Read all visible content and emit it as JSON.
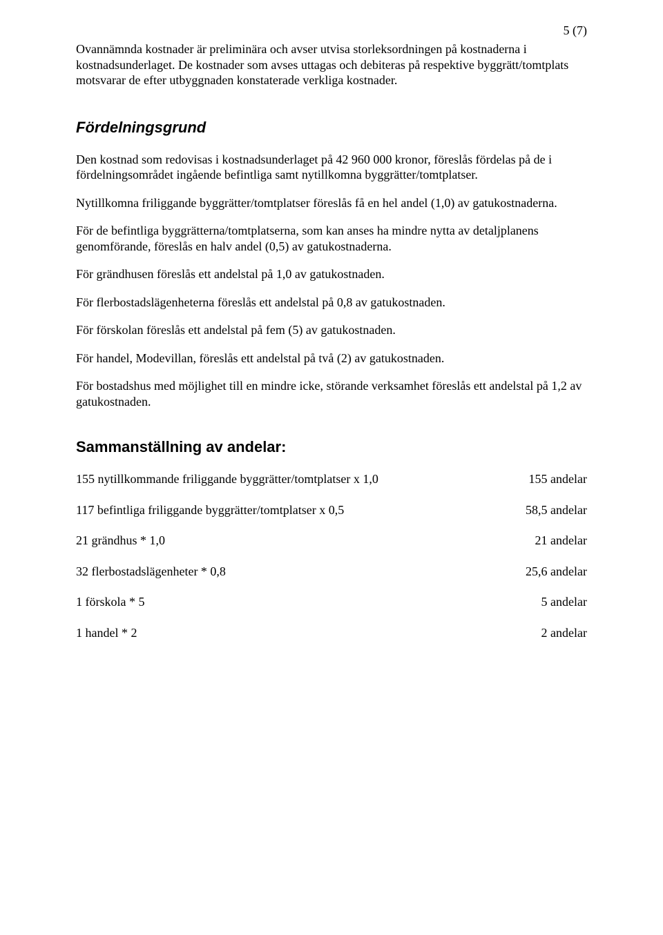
{
  "page_number": "5 (7)",
  "intro": {
    "p1": "Ovannämnda kostnader är preliminära och avser utvisa storleksordningen på kostnaderna i kostnadsunderlaget. De kostnader som avses uttagas och debiteras på respektive byggrätt/tomtplats motsvarar de efter utbyggnaden konstaterade verkliga kostnader."
  },
  "section1": {
    "heading": "Fördelningsgrund",
    "paragraphs": [
      "Den kostnad som redovisas i kostnadsunderlaget på 42 960 000 kronor, föreslås fördelas på de i fördelningsområdet ingående befintliga samt nytillkomna byggrätter/tomtplatser.",
      "Nytillkomna friliggande byggrätter/tomtplatser föreslås få en hel andel (1,0) av gatukostnaderna.",
      "För de befintliga byggrätterna/tomtplatserna, som kan anses ha mindre nytta av detaljplanens genomförande, föreslås en halv andel (0,5) av gatukostnaderna.",
      "För grändhusen föreslås ett andelstal på 1,0 av gatukostnaden.",
      "För flerbostadslägenheterna föreslås ett andelstal på 0,8 av gatukostnaden.",
      "För förskolan föreslås ett andelstal på fem (5) av gatukostnaden.",
      "För handel, Modevillan, föreslås ett andelstal på två (2) av gatukostnaden.",
      "För bostadshus med möjlighet till en mindre icke, störande verksamhet föreslås ett andelstal på 1,2 av gatukostnaden."
    ]
  },
  "section2": {
    "heading": "Sammanställning av andelar:",
    "rows": [
      {
        "desc": "155 nytillkommande friliggande byggrätter/tomtplatser x 1,0",
        "val": "155 andelar"
      },
      {
        "desc": "117 befintliga friliggande byggrätter/tomtplatser x 0,5",
        "val": "58,5 andelar"
      },
      {
        "desc": "21 grändhus * 1,0",
        "val": "21 andelar"
      },
      {
        "desc": "32 flerbostadslägenheter * 0,8",
        "val": "25,6 andelar"
      },
      {
        "desc": "1 förskola * 5",
        "val": "5 andelar"
      },
      {
        "desc": "1 handel * 2",
        "val": "2 andelar"
      }
    ]
  }
}
